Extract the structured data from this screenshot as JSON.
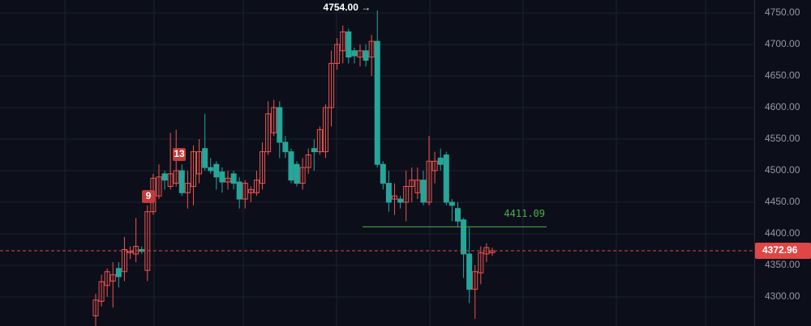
{
  "chart_data": {
    "type": "candlestick",
    "ylim": [
      4253.8,
      4770.5
    ],
    "yticks": [
      {
        "value": 4300,
        "label": "4300.00"
      },
      {
        "value": 4350,
        "label": "4350.00"
      },
      {
        "value": 4400,
        "label": "4400.00"
      },
      {
        "value": 4450,
        "label": "4450.00"
      },
      {
        "value": 4500,
        "label": "4500.00"
      },
      {
        "value": 4550,
        "label": "4550.00"
      },
      {
        "value": 4600,
        "label": "4600.00"
      },
      {
        "value": 4650,
        "label": "4650.00"
      },
      {
        "value": 4700,
        "label": "4700.00"
      },
      {
        "value": 4750,
        "label": "4750.00"
      }
    ],
    "grid": true,
    "up_color": "#ef5350",
    "down_color": "#26a69a",
    "open": [
      4270,
      4293,
      4318,
      4325,
      4345,
      4340,
      4370,
      4368,
      4375,
      4342,
      4435,
      4460,
      4495,
      4475,
      4480,
      4500,
      4465,
      4475,
      4495,
      4535,
      4505,
      4510,
      4498,
      4482,
      4495,
      4482,
      4455,
      4465,
      4465,
      4480,
      4530,
      4560,
      4600,
      4545,
      4530,
      4510,
      4480,
      4505,
      4535,
      4530,
      4530,
      4600,
      4670,
      4690,
      4720,
      4690,
      4680,
      4690,
      4680,
      4705,
      4510,
      4480,
      4455,
      4455,
      4450,
      4475,
      4465,
      4485,
      4450,
      4500,
      4520,
      4525,
      4450,
      4440,
      4422,
      4368,
      4312,
      4338,
      4368,
      4370
    ],
    "high": [
      4305,
      4335,
      4345,
      4355,
      4355,
      4395,
      4380,
      4425,
      4380,
      4445,
      4495,
      4510,
      4500,
      4560,
      4565,
      4510,
      4500,
      4540,
      4550,
      4590,
      4520,
      4515,
      4505,
      4500,
      4500,
      4490,
      4485,
      4475,
      4500,
      4545,
      4610,
      4612,
      4610,
      4555,
      4535,
      4515,
      4520,
      4535,
      4550,
      4570,
      4605,
      4690,
      4710,
      4730,
      4725,
      4695,
      4700,
      4700,
      4715,
      4754,
      4515,
      4500,
      4480,
      4460,
      4500,
      4505,
      4505,
      4500,
      4555,
      4530,
      4535,
      4530,
      4455,
      4450,
      4425,
      4410,
      4350,
      4380,
      4385,
      4378
    ],
    "low": [
      4254,
      4285,
      4300,
      4283,
      4315,
      4325,
      4360,
      4355,
      4368,
      4325,
      4430,
      4455,
      4470,
      4470,
      4475,
      4460,
      4440,
      4445,
      4480,
      4500,
      4495,
      4470,
      4465,
      4470,
      4470,
      4440,
      4440,
      4450,
      4460,
      4470,
      4525,
      4555,
      4520,
      4520,
      4480,
      4475,
      4470,
      4495,
      4500,
      4525,
      4520,
      4570,
      4660,
      4670,
      4670,
      4670,
      4665,
      4665,
      4650,
      4505,
      4470,
      4435,
      4430,
      4440,
      4420,
      4450,
      4455,
      4445,
      4445,
      4480,
      4500,
      4445,
      4420,
      4410,
      4330,
      4290,
      4265,
      4320,
      4355,
      4365
    ],
    "close": [
      4295,
      4324,
      4340,
      4335,
      4332,
      4375,
      4372,
      4380,
      4372,
      4435,
      4488,
      4490,
      4485,
      4495,
      4500,
      4465,
      4480,
      4530,
      4530,
      4505,
      4500,
      4490,
      4482,
      4488,
      4480,
      4455,
      4480,
      4470,
      4485,
      4530,
      4590,
      4600,
      4545,
      4530,
      4485,
      4480,
      4505,
      4525,
      4530,
      4565,
      4600,
      4670,
      4700,
      4720,
      4680,
      4682,
      4690,
      4675,
      4705,
      4510,
      4480,
      4450,
      4460,
      4450,
      4475,
      4485,
      4485,
      4450,
      4515,
      4515,
      4510,
      4450,
      4445,
      4420,
      4368,
      4312,
      4340,
      4370,
      4378,
      4372.96
    ],
    "high_marker": {
      "value": 4754,
      "label": "4754.00 →"
    },
    "level_line": {
      "value": 4411.09,
      "label": "4411.09",
      "color": "#4caf50"
    },
    "last_price": {
      "value": 4372.96,
      "label": "4372.96",
      "color": "#e04646"
    },
    "badges": [
      "9",
      "13"
    ]
  }
}
